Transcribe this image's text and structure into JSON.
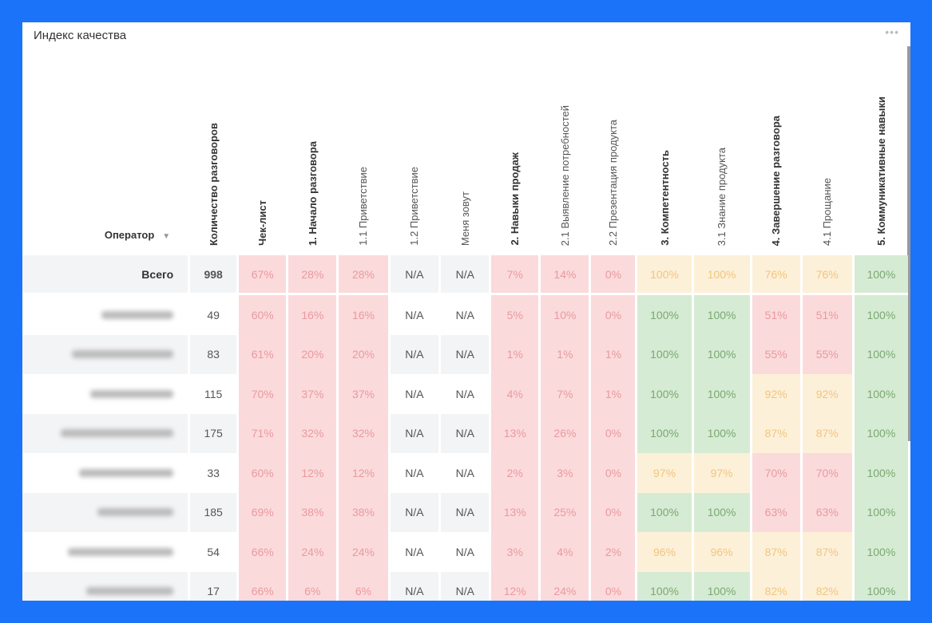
{
  "widget": {
    "title": "Индекс качества",
    "menu_icon": "more-horizontal-icon"
  },
  "colors": {
    "frame": "#1a73f8",
    "red_bg": "#fbdadc",
    "yellow_bg": "#fdf0d8",
    "green_bg": "#d6ebd3"
  },
  "columns": [
    {
      "label": "Оператор",
      "sort_icon": "caret-down-icon"
    },
    {
      "label": "Количество разговоров",
      "bold": true
    },
    {
      "label": "Чек-лист",
      "bold": true
    },
    {
      "label": "1. Начало разговора",
      "bold": true
    },
    {
      "label": "1.1 Приветствие"
    },
    {
      "label": "1.2 Приветствие"
    },
    {
      "label": "Меня зовут"
    },
    {
      "label": "2. Навыки продаж",
      "bold": true
    },
    {
      "label": "2.1 Выявление потребностей"
    },
    {
      "label": "2.2 Презентация продукта"
    },
    {
      "label": "3. Компетентность",
      "bold": true
    },
    {
      "label": "3.1 Знание продукта"
    },
    {
      "label": "4. Завершение разговора",
      "bold": true
    },
    {
      "label": "4.1 Прощание"
    },
    {
      "label": "5. Коммуникативные навыки",
      "bold": true
    }
  ],
  "total": {
    "label": "Всего",
    "count": "998",
    "values": [
      "67%",
      "28%",
      "28%",
      "N/A",
      "N/A",
      "7%",
      "14%",
      "0%",
      "100%",
      "100%",
      "76%",
      "76%",
      "100%"
    ],
    "status": [
      "r",
      "r",
      "r",
      "n",
      "n",
      "r",
      "r",
      "r",
      "y",
      "y",
      "y",
      "y",
      "gr"
    ]
  },
  "rows": [
    {
      "count": "49",
      "values": [
        "60%",
        "16%",
        "16%",
        "N/A",
        "N/A",
        "5%",
        "10%",
        "0%",
        "100%",
        "100%",
        "51%",
        "51%",
        "100%"
      ],
      "status": [
        "r",
        "r",
        "r",
        "n",
        "n",
        "r",
        "r",
        "r",
        "gr",
        "gr",
        "r",
        "r",
        "gr"
      ]
    },
    {
      "count": "83",
      "values": [
        "61%",
        "20%",
        "20%",
        "N/A",
        "N/A",
        "1%",
        "1%",
        "1%",
        "100%",
        "100%",
        "55%",
        "55%",
        "100%"
      ],
      "status": [
        "r",
        "r",
        "r",
        "n",
        "n",
        "r",
        "r",
        "r",
        "gr",
        "gr",
        "r",
        "r",
        "gr"
      ]
    },
    {
      "count": "115",
      "values": [
        "70%",
        "37%",
        "37%",
        "N/A",
        "N/A",
        "4%",
        "7%",
        "1%",
        "100%",
        "100%",
        "92%",
        "92%",
        "100%"
      ],
      "status": [
        "r",
        "r",
        "r",
        "n",
        "n",
        "r",
        "r",
        "r",
        "gr",
        "gr",
        "y",
        "y",
        "gr"
      ]
    },
    {
      "count": "175",
      "values": [
        "71%",
        "32%",
        "32%",
        "N/A",
        "N/A",
        "13%",
        "26%",
        "0%",
        "100%",
        "100%",
        "87%",
        "87%",
        "100%"
      ],
      "status": [
        "r",
        "r",
        "r",
        "n",
        "n",
        "r",
        "r",
        "r",
        "gr",
        "gr",
        "y",
        "y",
        "gr"
      ]
    },
    {
      "count": "33",
      "values": [
        "60%",
        "12%",
        "12%",
        "N/A",
        "N/A",
        "2%",
        "3%",
        "0%",
        "97%",
        "97%",
        "70%",
        "70%",
        "100%"
      ],
      "status": [
        "r",
        "r",
        "r",
        "n",
        "n",
        "r",
        "r",
        "r",
        "y",
        "y",
        "r",
        "r",
        "gr"
      ]
    },
    {
      "count": "185",
      "values": [
        "69%",
        "38%",
        "38%",
        "N/A",
        "N/A",
        "13%",
        "25%",
        "0%",
        "100%",
        "100%",
        "63%",
        "63%",
        "100%"
      ],
      "status": [
        "r",
        "r",
        "r",
        "n",
        "n",
        "r",
        "r",
        "r",
        "gr",
        "gr",
        "r",
        "r",
        "gr"
      ]
    },
    {
      "count": "54",
      "values": [
        "66%",
        "24%",
        "24%",
        "N/A",
        "N/A",
        "3%",
        "4%",
        "2%",
        "96%",
        "96%",
        "87%",
        "87%",
        "100%"
      ],
      "status": [
        "r",
        "r",
        "r",
        "n",
        "n",
        "r",
        "r",
        "r",
        "y",
        "y",
        "y",
        "y",
        "gr"
      ]
    },
    {
      "count": "17",
      "values": [
        "66%",
        "6%",
        "6%",
        "N/A",
        "N/A",
        "12%",
        "24%",
        "0%",
        "100%",
        "100%",
        "82%",
        "82%",
        "100%"
      ],
      "status": [
        "r",
        "r",
        "r",
        "n",
        "n",
        "r",
        "r",
        "r",
        "gr",
        "gr",
        "y",
        "y",
        "gr"
      ]
    }
  ]
}
